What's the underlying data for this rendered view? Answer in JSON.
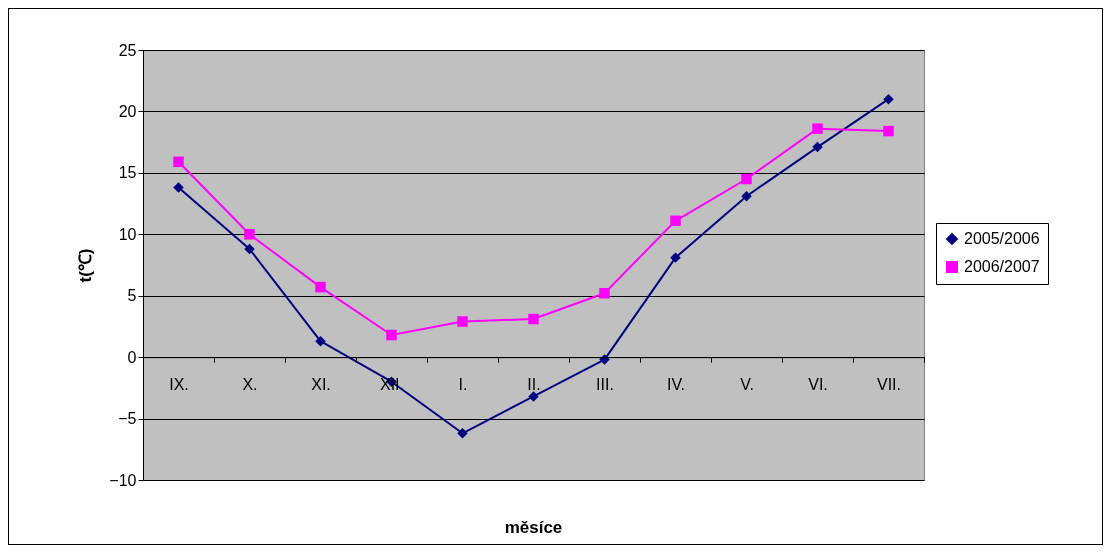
{
  "chart_data": {
    "type": "line",
    "xlabel": "měsíce",
    "ylabel": "t(℃)",
    "categories": [
      "IX.",
      "X.",
      "XI.",
      "XII.",
      "I.",
      "II.",
      "III.",
      "IV.",
      "V.",
      "VI.",
      "VII."
    ],
    "series": [
      {
        "name": "2005/2006",
        "color": "#000080",
        "marker": "diamond",
        "values": [
          13.8,
          8.8,
          1.3,
          -2.0,
          -6.2,
          -3.2,
          -0.2,
          8.1,
          13.1,
          17.1,
          21.0
        ]
      },
      {
        "name": "2006/2007",
        "color": "#ff00ff",
        "marker": "square",
        "values": [
          15.9,
          10.0,
          5.7,
          1.8,
          2.9,
          3.1,
          5.2,
          11.1,
          14.5,
          18.6,
          18.4
        ]
      }
    ],
    "ylim": [
      -10,
      25
    ],
    "yticks": [
      -10,
      -5,
      0,
      5,
      10,
      15,
      20,
      25
    ],
    "grid": "y",
    "legend": "right"
  }
}
